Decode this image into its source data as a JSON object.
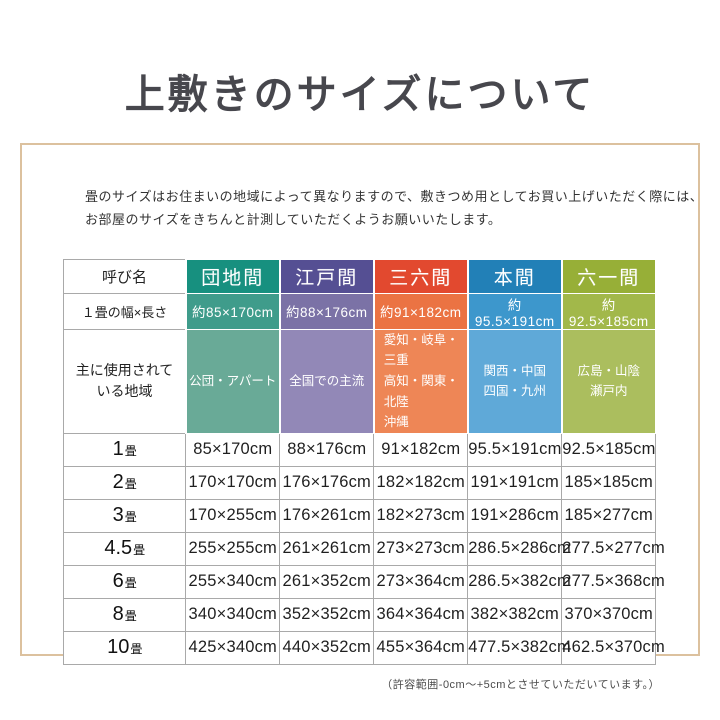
{
  "title": "上敷きのサイズについて",
  "intro": {
    "line1": "畳のサイズはお住まいの地域によって異なりますので、敷きつめ用としてお買い上げいただく際には、",
    "line2": "お部屋のサイズをきちんと計測していただくようお願いいたします。"
  },
  "chart_data": {
    "type": "table",
    "title": "上敷きのサイズについて",
    "corner_label": "呼び名",
    "size_row_label": "１畳の幅×長さ",
    "region_row_label": "主に使用されて\nいる地域",
    "row_unit": "畳",
    "columns": [
      {
        "label": "団地間",
        "size": "約85×170cm",
        "region": "公団・アパート",
        "color_dark": "#17907f",
        "color_mid": "#3f9c8b",
        "color_light": "#69aa97"
      },
      {
        "label": "江戸間",
        "size": "約88×176cm",
        "region": "全国での主流",
        "color_dark": "#554f93",
        "color_mid": "#7b72a6",
        "color_light": "#9288b7"
      },
      {
        "label": "三六間",
        "size": "約91×182cm",
        "region": "愛知・岐阜・三重\n高知・関東・北陸\n沖縄",
        "color_dark": "#e2492f",
        "color_mid": "#eb7343",
        "color_light": "#ee8656"
      },
      {
        "label": "本間",
        "size": "約95.5×191cm",
        "region": "関西・中国\n四国・九州",
        "color_dark": "#2280b7",
        "color_mid": "#3d97cc",
        "color_light": "#5fa9d8"
      },
      {
        "label": "六一間",
        "size": "約92.5×185cm",
        "region": "広島・山陰\n瀬戸内",
        "color_dark": "#97af37",
        "color_mid": "#a2b84a",
        "color_light": "#abbe5e"
      }
    ],
    "rows": [
      {
        "count": "1",
        "values": [
          "85×170cm",
          "88×176cm",
          "91×182cm",
          "95.5×191cm",
          "92.5×185cm"
        ]
      },
      {
        "count": "2",
        "values": [
          "170×170cm",
          "176×176cm",
          "182×182cm",
          "191×191cm",
          "185×185cm"
        ]
      },
      {
        "count": "3",
        "values": [
          "170×255cm",
          "176×261cm",
          "182×273cm",
          "191×286cm",
          "185×277cm"
        ]
      },
      {
        "count": "4.5",
        "values": [
          "255×255cm",
          "261×261cm",
          "273×273cm",
          "286.5×286cm",
          "277.5×277cm"
        ]
      },
      {
        "count": "6",
        "values": [
          "255×340cm",
          "261×352cm",
          "273×364cm",
          "286.5×382cm",
          "277.5×368cm"
        ]
      },
      {
        "count": "8",
        "values": [
          "340×340cm",
          "352×352cm",
          "364×364cm",
          "382×382cm",
          "370×370cm"
        ]
      },
      {
        "count": "10",
        "values": [
          "425×340cm",
          "440×352cm",
          "455×364cm",
          "477.5×382cm",
          "462.5×370cm"
        ]
      }
    ]
  },
  "footnote": "（許容範囲-0cm〜+5cmとさせていただいています。）",
  "frame_color": "#dcc19e"
}
